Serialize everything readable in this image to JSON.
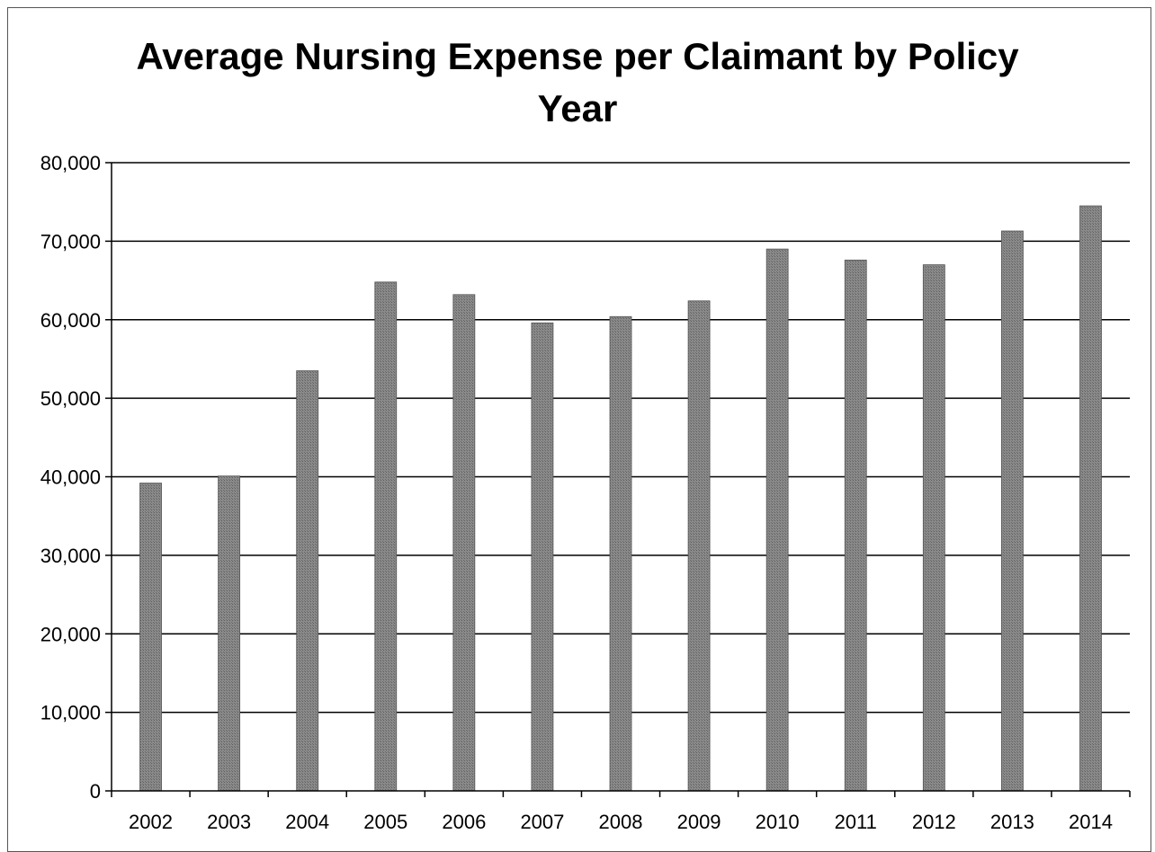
{
  "chart_data": {
    "type": "bar",
    "title_line1": "Average Nursing Expense per Claimant by Policy",
    "title_line2": "Year",
    "categories": [
      "2002",
      "2003",
      "2004",
      "2005",
      "2006",
      "2007",
      "2008",
      "2009",
      "2010",
      "2011",
      "2012",
      "2013",
      "2014"
    ],
    "values": [
      39200,
      40100,
      53500,
      64800,
      63200,
      59600,
      60400,
      62400,
      69000,
      67600,
      67000,
      71300,
      74500
    ],
    "ylim": [
      0,
      80000
    ],
    "yticks": [
      0,
      10000,
      20000,
      30000,
      40000,
      50000,
      60000,
      70000,
      80000
    ],
    "ytick_labels": [
      "0",
      "10,000",
      "20,000",
      "30,000",
      "40,000",
      "50,000",
      "60,000",
      "70,000",
      "80,000"
    ],
    "grid": true,
    "legend": "none",
    "bar_color": "#7a7a7a"
  }
}
